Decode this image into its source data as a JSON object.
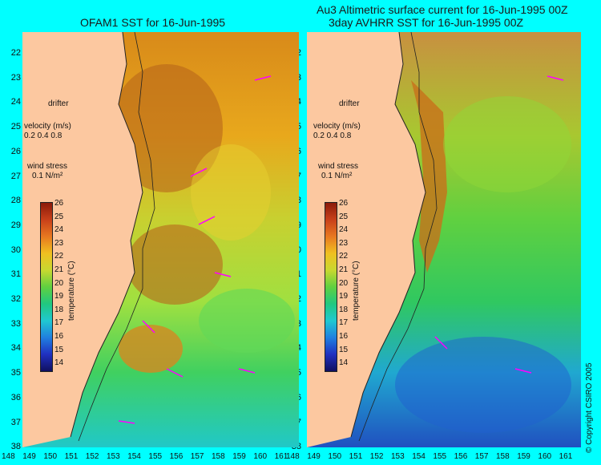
{
  "titles": {
    "left": "OFAM1 SST for 16-Jun-1995",
    "right_line1": "Au3 Altimetric surface current for 16-Jun-1995 00Z",
    "right_line2": "3day AVHRR SST for 16-Jun-1995 00Z"
  },
  "latitudes": [
    "22",
    "23",
    "24",
    "25",
    "26",
    "27",
    "28",
    "29",
    "30",
    "31",
    "32",
    "33",
    "34",
    "35",
    "36",
    "37",
    "38"
  ],
  "longitudes": [
    "148",
    "149",
    "150",
    "151",
    "152",
    "153",
    "154",
    "155",
    "156",
    "157",
    "158",
    "159",
    "160",
    "161"
  ],
  "legend": {
    "drifter": "drifter",
    "velocity_label": "velocity (m/s)",
    "velocity_scale": "0.2 0.4 0.8",
    "wind_label": "wind stress",
    "wind_value": "0.1 N/m²"
  },
  "colorbar": {
    "title": "temperature (°C)",
    "ticks": [
      "26",
      "25",
      "24",
      "23",
      "22",
      "21",
      "20",
      "19",
      "18",
      "17",
      "16",
      "15",
      "14"
    ]
  },
  "copyright": "© Copyright CSIRO 2005",
  "colors": {
    "background": "#00ffff",
    "land": "#fcc8a0",
    "wind_arrow": "#ff00ff"
  }
}
